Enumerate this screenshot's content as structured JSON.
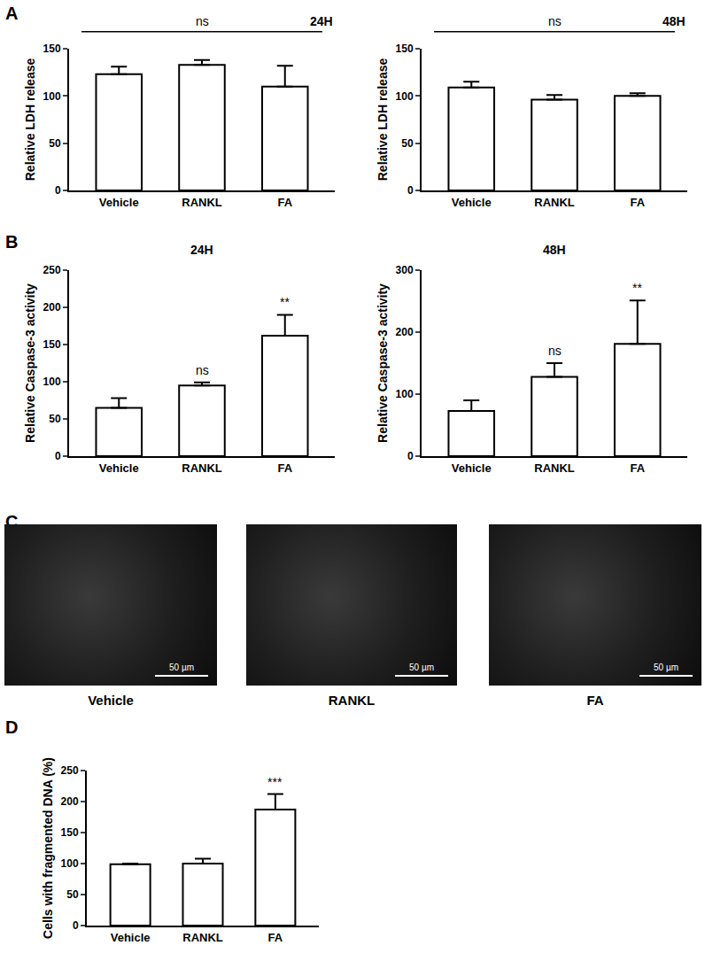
{
  "chart_data": [
    {
      "panel": "A",
      "type": "bar",
      "title": "24H",
      "categories": [
        "Vehicle",
        "RANKL",
        "FA"
      ],
      "values": [
        123,
        133,
        110
      ],
      "errors": [
        8,
        5,
        22
      ],
      "y_label": "Relative LDH release",
      "ylim": [
        0,
        150
      ],
      "yticks": [
        0,
        50,
        100,
        150
      ],
      "annotations": [
        {
          "text": "ns",
          "span": [
            "Vehicle",
            "FA"
          ]
        }
      ],
      "color": "#ffffff",
      "grid": false
    },
    {
      "type": "bar",
      "title": "48H",
      "categories": [
        "Vehicle",
        "RANKL",
        "FA"
      ],
      "values": [
        109,
        96,
        100
      ],
      "errors": [
        6,
        5,
        3
      ],
      "y_label": "Relative LDH release",
      "ylim": [
        0,
        150
      ],
      "yticks": [
        0,
        50,
        100,
        150
      ],
      "annotations": [
        {
          "text": "ns",
          "span": [
            "Vehicle",
            "FA"
          ]
        }
      ],
      "color": "#ffffff",
      "grid": false
    },
    {
      "panel": "B",
      "type": "bar",
      "title": "24H",
      "categories": [
        "Vehicle",
        "RANKL",
        "FA"
      ],
      "values": [
        65,
        95,
        162
      ],
      "errors": [
        13,
        4,
        28
      ],
      "y_label": "Relative Caspase-3 activity",
      "ylim": [
        0,
        250
      ],
      "yticks": [
        0,
        50,
        100,
        150,
        200,
        250
      ],
      "annotations": [
        {
          "text": "ns",
          "category": "RANKL"
        },
        {
          "text": "**",
          "category": "FA"
        }
      ],
      "color": "#ffffff",
      "grid": false
    },
    {
      "type": "bar",
      "title": "48H",
      "categories": [
        "Vehicle",
        "RANKL",
        "FA"
      ],
      "values": [
        73,
        128,
        181
      ],
      "errors": [
        17,
        22,
        70
      ],
      "y_label": "Relative Caspase-3 activity",
      "ylim": [
        0,
        300
      ],
      "yticks": [
        0,
        100,
        200,
        300
      ],
      "annotations": [
        {
          "text": "ns",
          "category": "RANKL"
        },
        {
          "text": "**",
          "category": "FA"
        }
      ],
      "color": "#ffffff",
      "grid": false
    },
    {
      "panel": "D",
      "type": "bar",
      "categories": [
        "Vehicle",
        "RANKL",
        "FA"
      ],
      "values": [
        99,
        100,
        187
      ],
      "errors": [
        1,
        8,
        25
      ],
      "y_label": "Cells with fragmented DNA (%)",
      "ylim": [
        0,
        250
      ],
      "yticks": [
        0,
        50,
        100,
        150,
        200,
        250
      ],
      "annotations": [
        {
          "text": "***",
          "category": "FA"
        }
      ],
      "color": "#ffffff",
      "grid": false
    }
  ],
  "micrographs": {
    "panel": "C",
    "labels": [
      "Vehicle",
      "RANKL",
      "FA"
    ],
    "scale_bar": "50 µm"
  }
}
